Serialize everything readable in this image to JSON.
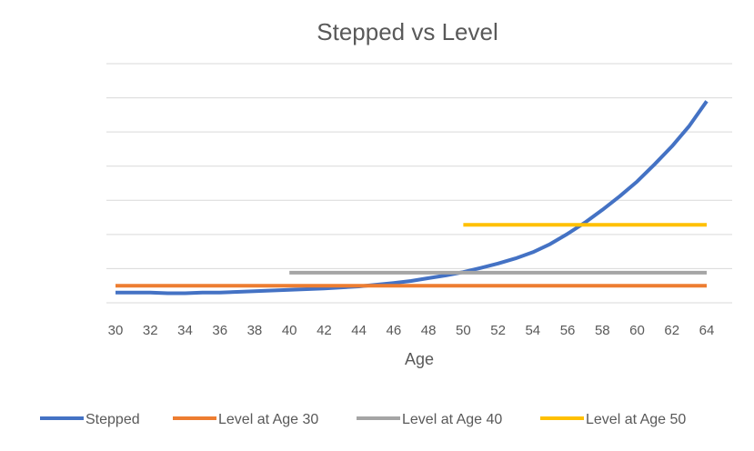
{
  "chart_data": {
    "type": "line",
    "title": "Stepped vs Level",
    "xlabel": "Age",
    "ylabel": "",
    "xlim": [
      30,
      64
    ],
    "ylim": [
      0,
      7
    ],
    "y_tick_labels_shown": false,
    "grid": true,
    "legend_position": "bottom",
    "x_ticks": [
      30,
      32,
      34,
      36,
      38,
      40,
      42,
      44,
      46,
      48,
      50,
      52,
      54,
      56,
      58,
      60,
      62,
      64
    ],
    "series": [
      {
        "name": "Stepped",
        "color": "#4472C4",
        "x": [
          30,
          31,
          32,
          33,
          34,
          35,
          36,
          37,
          38,
          39,
          40,
          41,
          42,
          43,
          44,
          45,
          46,
          47,
          48,
          49,
          50,
          51,
          52,
          53,
          54,
          55,
          56,
          57,
          58,
          59,
          60,
          61,
          62,
          63,
          64
        ],
        "y": [
          0.3,
          0.3,
          0.3,
          0.28,
          0.28,
          0.3,
          0.3,
          0.32,
          0.34,
          0.36,
          0.38,
          0.4,
          0.42,
          0.45,
          0.48,
          0.53,
          0.58,
          0.64,
          0.72,
          0.8,
          0.9,
          1.02,
          1.15,
          1.3,
          1.48,
          1.72,
          2.02,
          2.35,
          2.72,
          3.12,
          3.55,
          4.05,
          4.58,
          5.18,
          5.9
        ]
      },
      {
        "name": "Level at Age 30",
        "color": "#ED7D31",
        "x": [
          30,
          64
        ],
        "y": [
          0.5,
          0.5
        ]
      },
      {
        "name": "Level at Age 40",
        "color": "#A5A5A5",
        "x": [
          40,
          64
        ],
        "y": [
          0.88,
          0.88
        ]
      },
      {
        "name": "Level at Age 50",
        "color": "#FFC000",
        "x": [
          50,
          64
        ],
        "y": [
          2.28,
          2.28
        ]
      }
    ]
  }
}
